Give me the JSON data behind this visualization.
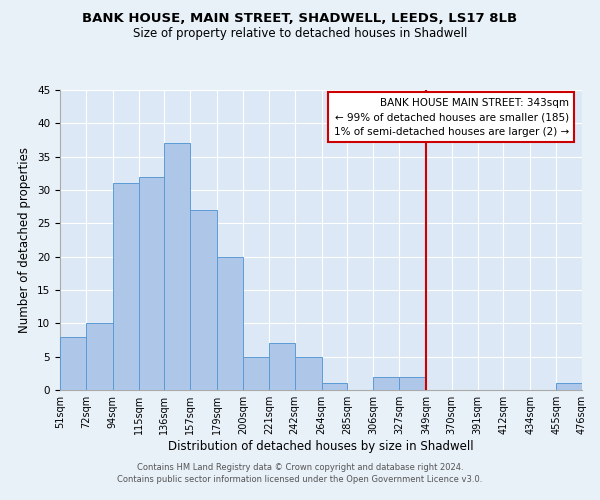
{
  "title": "BANK HOUSE, MAIN STREET, SHADWELL, LEEDS, LS17 8LB",
  "subtitle": "Size of property relative to detached houses in Shadwell",
  "xlabel": "Distribution of detached houses by size in Shadwell",
  "ylabel": "Number of detached properties",
  "bar_left_edges": [
    51,
    72,
    94,
    115,
    136,
    157,
    179,
    200,
    221,
    242,
    264,
    285,
    306,
    327,
    349,
    370,
    391,
    412,
    434,
    455
  ],
  "bar_widths": [
    21,
    22,
    21,
    21,
    21,
    22,
    21,
    21,
    21,
    22,
    21,
    21,
    21,
    22,
    21,
    21,
    21,
    22,
    21,
    21
  ],
  "bar_heights": [
    8,
    10,
    31,
    32,
    37,
    27,
    20,
    5,
    7,
    5,
    1,
    0,
    2,
    2,
    0,
    0,
    0,
    0,
    0,
    1
  ],
  "tick_labels": [
    "51sqm",
    "72sqm",
    "94sqm",
    "115sqm",
    "136sqm",
    "157sqm",
    "179sqm",
    "200sqm",
    "221sqm",
    "242sqm",
    "264sqm",
    "285sqm",
    "306sqm",
    "327sqm",
    "349sqm",
    "370sqm",
    "391sqm",
    "412sqm",
    "434sqm",
    "455sqm",
    "476sqm"
  ],
  "bar_color": "#aec6e8",
  "bar_edgecolor": "#5b9bd5",
  "vline_x": 349,
  "vline_color": "#cc0000",
  "ylim": [
    0,
    45
  ],
  "yticks": [
    0,
    5,
    10,
    15,
    20,
    25,
    30,
    35,
    40,
    45
  ],
  "annotation_title": "BANK HOUSE MAIN STREET: 343sqm",
  "annotation_line1": "← 99% of detached houses are smaller (185)",
  "annotation_line2": "1% of semi-detached houses are larger (2) →",
  "footer_line1": "Contains HM Land Registry data © Crown copyright and database right 2024.",
  "footer_line2": "Contains public sector information licensed under the Open Government Licence v3.0.",
  "bg_color": "#e8f0f8",
  "plot_bg_color": "#dce8f5"
}
